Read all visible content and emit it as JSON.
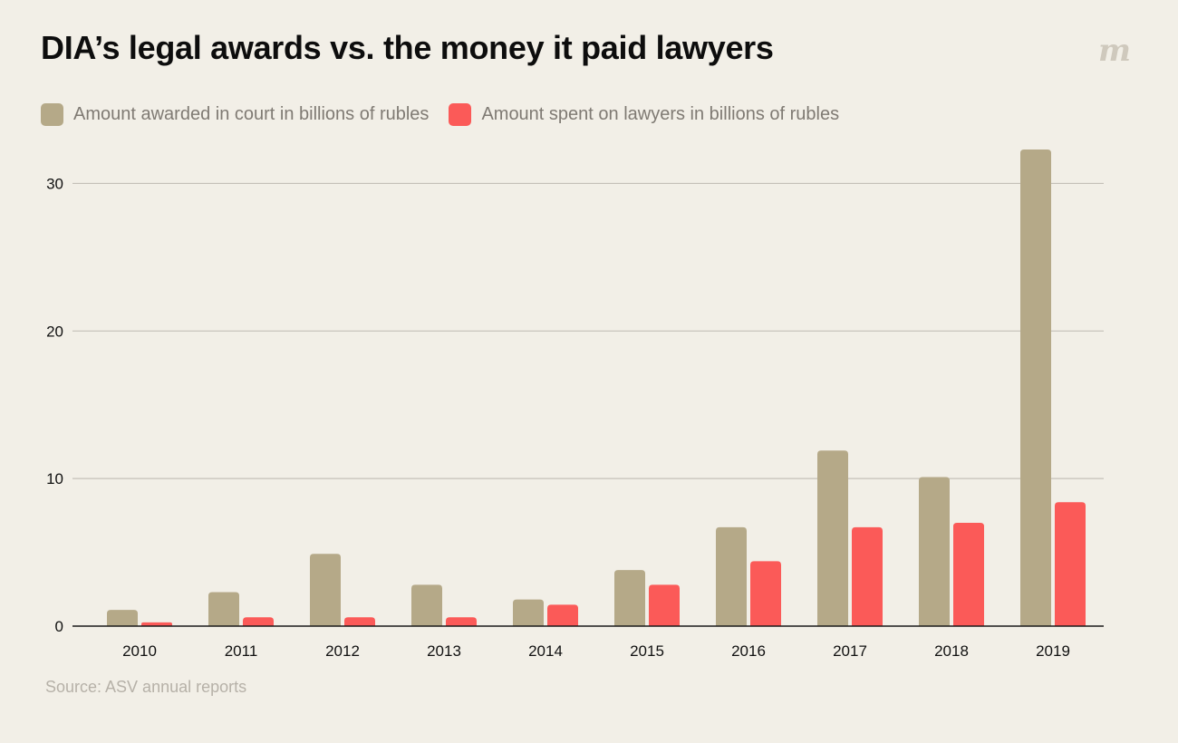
{
  "chart_data": {
    "type": "bar",
    "title": "DIA’s legal awards vs. the money it paid lawyers",
    "categories": [
      "2010",
      "2011",
      "2012",
      "2013",
      "2014",
      "2015",
      "2016",
      "2017",
      "2018",
      "2019"
    ],
    "series": [
      {
        "name": "Amount awarded in court in billions of rubles",
        "color": "#b5a988",
        "values": [
          1.1,
          2.3,
          4.9,
          2.8,
          1.8,
          3.8,
          6.7,
          11.9,
          10.1,
          32.3
        ]
      },
      {
        "name": "Amount spent on lawyers in billions of rubles",
        "color": "#fb5a58",
        "values": [
          0.25,
          0.6,
          0.6,
          0.6,
          1.45,
          2.8,
          4.4,
          6.7,
          7.0,
          8.4
        ]
      }
    ],
    "yticks": [
      0,
      10,
      20,
      30
    ],
    "ylim": [
      0,
      32.3
    ],
    "xlabel": "",
    "ylabel": "",
    "grid": true,
    "legend_position": "top-left",
    "source": "Source: ASV annual reports"
  },
  "branding": {
    "logo_icon": "meduza-logo-icon"
  },
  "colors": {
    "background": "#f2efe7",
    "grid": "#c4c0b8",
    "axis": "#1a1a1a",
    "tick_text": "#111111"
  }
}
